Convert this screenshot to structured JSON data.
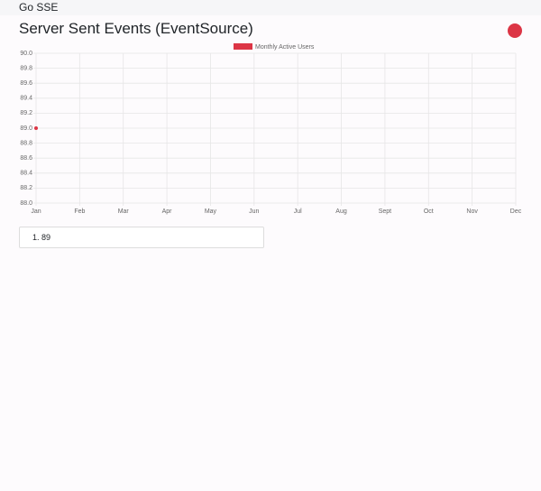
{
  "navbar": {
    "brand": "Go SSE"
  },
  "heading": "Server Sent Events (EventSource)",
  "chart_data": {
    "type": "line",
    "categories": [
      "Jan",
      "Feb",
      "Mar",
      "Apr",
      "May",
      "Jun",
      "Jul",
      "Aug",
      "Sept",
      "Oct",
      "Nov",
      "Dec"
    ],
    "series": [
      {
        "name": "Monthly Active Users",
        "color": "#dc3545",
        "values": [
          89,
          null,
          null,
          null,
          null,
          null,
          null,
          null,
          null,
          null,
          null,
          null
        ]
      }
    ],
    "ylim": [
      88,
      90
    ],
    "yticks": [
      {
        "value": 88,
        "label": "88.0"
      },
      {
        "value": 88.2,
        "label": "88.2"
      },
      {
        "value": 88.4,
        "label": "88.4"
      },
      {
        "value": 88.6,
        "label": "88.6"
      },
      {
        "value": 88.8,
        "label": "88.8"
      },
      {
        "value": 89,
        "label": "89.0"
      },
      {
        "value": 89.2,
        "label": "89.2"
      },
      {
        "value": 89.4,
        "label": "89.4"
      },
      {
        "value": 89.6,
        "label": "89.6"
      },
      {
        "value": 89.8,
        "label": "89.8"
      },
      {
        "value": 90,
        "label": "90.0"
      }
    ],
    "grid": true,
    "legend": "top"
  },
  "list": {
    "items": [
      89
    ]
  }
}
